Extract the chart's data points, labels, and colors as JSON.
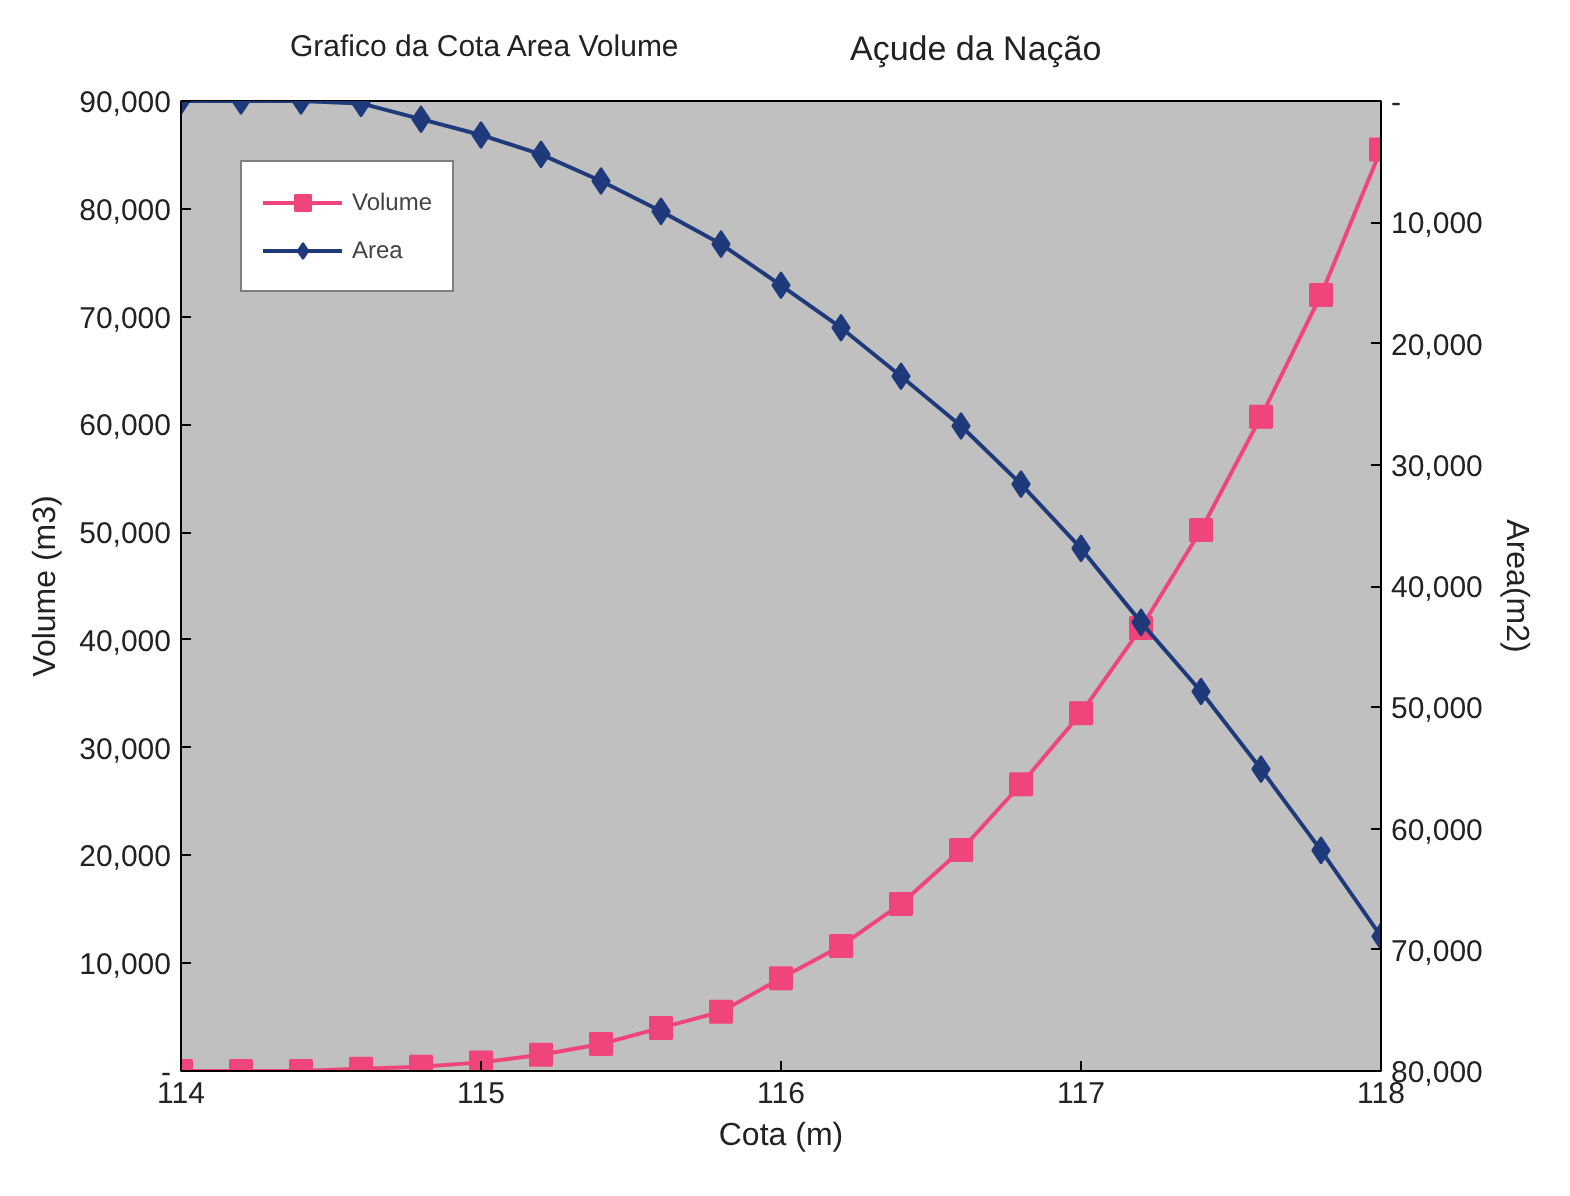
{
  "chart_data": {
    "type": "line",
    "title": "Grafico da Cota Area Volume",
    "subtitle": "Açude da Nação",
    "xlabel": "Cota (m)",
    "ylabel": "Volume (m3)",
    "y2label": "Area(m2)",
    "x": [
      114,
      114.2,
      114.4,
      114.6,
      114.8,
      115,
      115.2,
      115.4,
      115.6,
      115.8,
      116,
      116.2,
      116.4,
      116.6,
      116.8,
      117,
      117.2,
      117.4,
      117.6,
      117.8,
      118
    ],
    "series": [
      {
        "name": "Volume",
        "color": "#f0457a",
        "marker": "square",
        "values": [
          0,
          0,
          0,
          200,
          400,
          800,
          1500,
          2500,
          4000,
          5500,
          8600,
          11600,
          15500,
          20500,
          26600,
          33200,
          41100,
          50200,
          60700,
          72000,
          85500
        ]
      },
      {
        "name": "Area",
        "color": "#1f3a7a",
        "marker": "diamond",
        "axis": "y2",
        "values": [
          0,
          0,
          0,
          200,
          1500,
          2800,
          4400,
          6600,
          9100,
          11800,
          15200,
          18700,
          22700,
          26800,
          31600,
          36900,
          43000,
          48700,
          55100,
          61800,
          68900
        ]
      }
    ],
    "xlim": [
      114,
      118
    ],
    "xticks": [
      114,
      115,
      116,
      117,
      118
    ],
    "ylim": [
      0,
      90000
    ],
    "yticks": [
      {
        "value": 0,
        "label": "-"
      },
      {
        "value": 10000,
        "label": "10,000"
      },
      {
        "value": 20000,
        "label": "20,000"
      },
      {
        "value": 30000,
        "label": "30,000"
      },
      {
        "value": 40000,
        "label": "40,000"
      },
      {
        "value": 50000,
        "label": "50,000"
      },
      {
        "value": 60000,
        "label": "60,000"
      },
      {
        "value": 70000,
        "label": "70,000"
      },
      {
        "value": 80000,
        "label": "80,000"
      },
      {
        "value": 90000,
        "label": "90,000"
      }
    ],
    "y2lim": [
      80000,
      0
    ],
    "y2ticks": [
      {
        "value": 0,
        "label": "-"
      },
      {
        "value": 10000,
        "label": "10,000"
      },
      {
        "value": 20000,
        "label": "20,000"
      },
      {
        "value": 30000,
        "label": "30,000"
      },
      {
        "value": 40000,
        "label": "40,000"
      },
      {
        "value": 50000,
        "label": "50,000"
      },
      {
        "value": 60000,
        "label": "60,000"
      },
      {
        "value": 70000,
        "label": "70,000"
      },
      {
        "value": 80000,
        "label": "80,000"
      }
    ],
    "grid": false,
    "legend": "top left",
    "line_style": "solid"
  }
}
